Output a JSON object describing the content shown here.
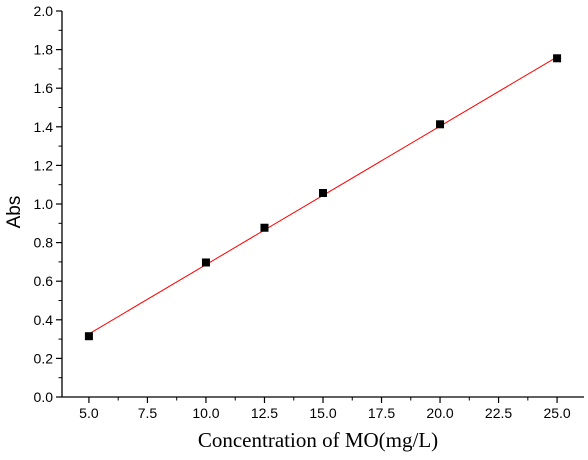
{
  "chart_data": {
    "type": "scatter",
    "title": "",
    "xlabel": "Concentration of MO(mg/L)",
    "ylabel": "Abs",
    "xlim": [
      3.85,
      26.15
    ],
    "ylim": [
      0.0,
      2.0
    ],
    "x_ticks": [
      "5.0",
      "7.5",
      "10.0",
      "12.5",
      "15.0",
      "17.5",
      "20.0",
      "22.5",
      "25.0"
    ],
    "y_ticks": [
      "0.0",
      "0.2",
      "0.4",
      "0.6",
      "0.8",
      "1.0",
      "1.2",
      "1.4",
      "1.6",
      "1.8",
      "2.0"
    ],
    "grid": false,
    "legend": "none",
    "series": [
      {
        "marker": "square",
        "color": "#000000",
        "x": [
          5.0,
          10.0,
          12.5,
          15.0,
          20.0,
          25.0
        ],
        "y": [
          0.315,
          0.697,
          0.877,
          1.057,
          1.413,
          1.755
        ]
      }
    ],
    "fit_line": {
      "color": "#ff0000",
      "x": [
        5.0,
        25.0
      ],
      "y": [
        0.327,
        1.762
      ]
    }
  }
}
